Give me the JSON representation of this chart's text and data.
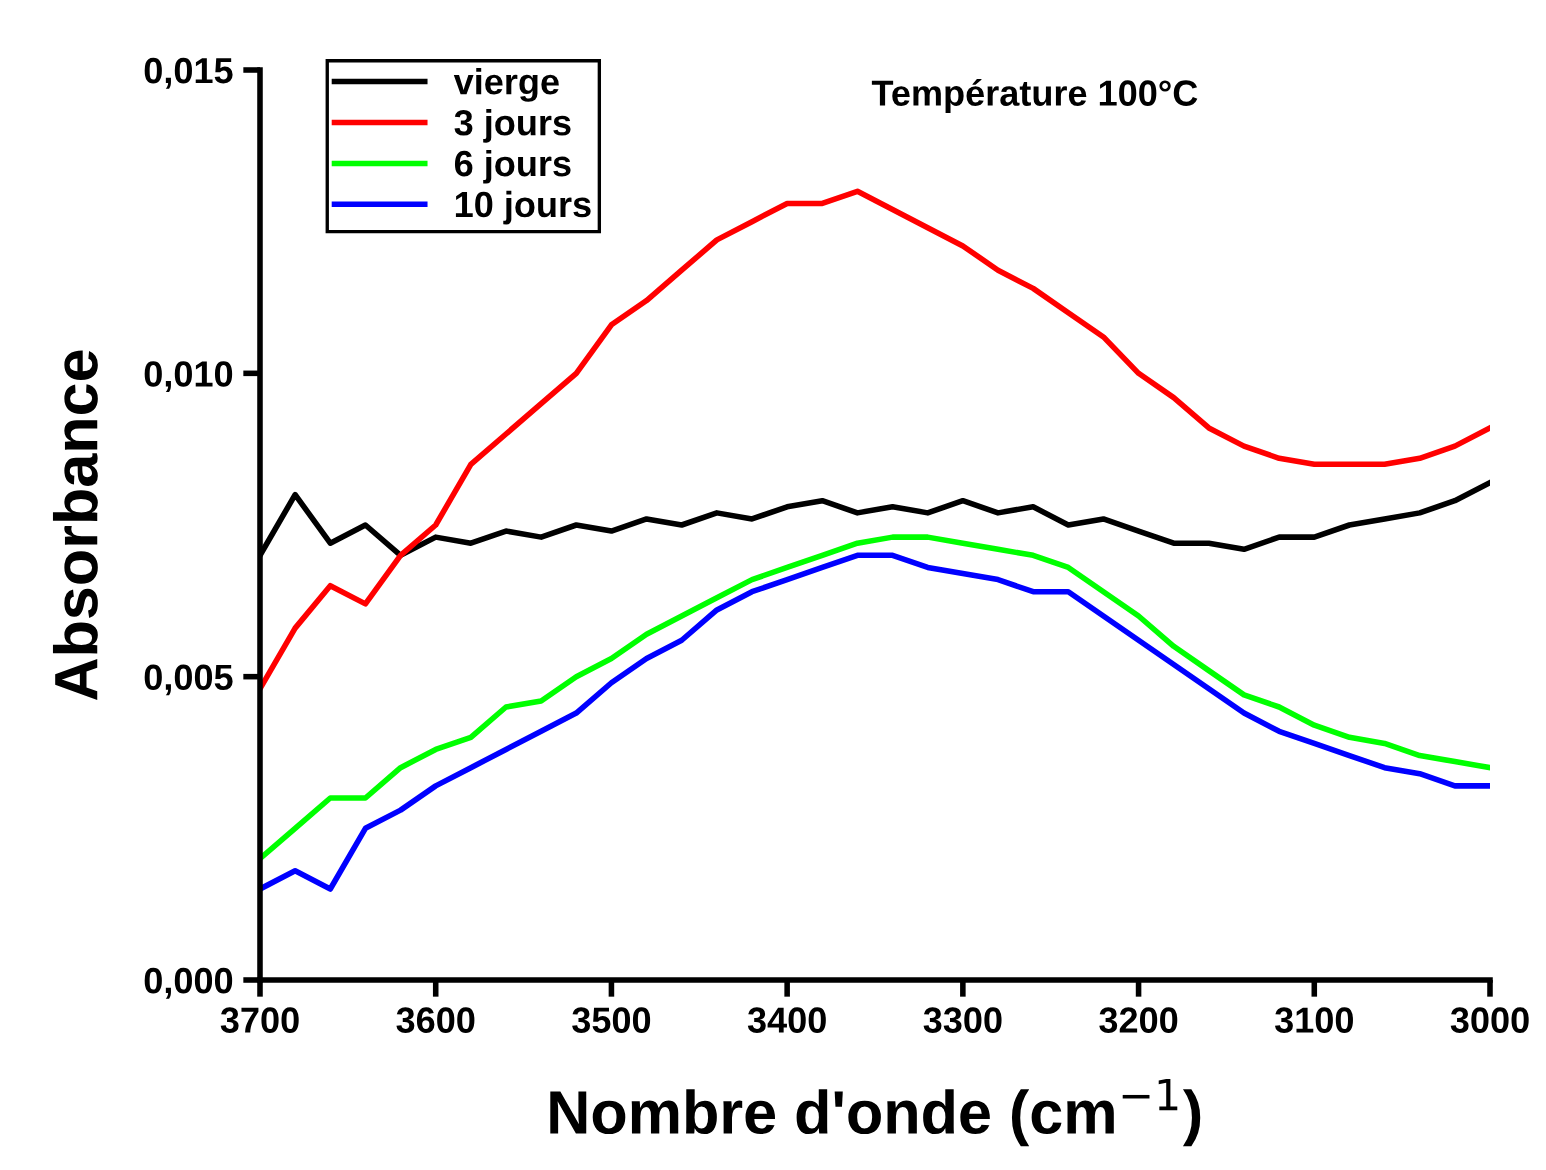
{
  "chart_data": {
    "type": "line",
    "title": "Température 100°C",
    "xlabel": "Nombre d'onde (cm$^{−1}$)",
    "ylabel": "Absorbance",
    "x": [
      3700,
      3680,
      3660,
      3640,
      3620,
      3600,
      3580,
      3560,
      3540,
      3520,
      3500,
      3480,
      3460,
      3440,
      3420,
      3400,
      3380,
      3360,
      3340,
      3320,
      3300,
      3280,
      3260,
      3240,
      3220,
      3200,
      3180,
      3160,
      3140,
      3120,
      3100,
      3080,
      3060,
      3040,
      3020,
      3000
    ],
    "series": [
      {
        "name": "vierge",
        "color": "#000000",
        "values": [
          0.007,
          0.008,
          0.0072,
          0.0075,
          0.007,
          0.0073,
          0.0072,
          0.0074,
          0.0073,
          0.0075,
          0.0074,
          0.0076,
          0.0075,
          0.0077,
          0.0076,
          0.0078,
          0.0079,
          0.0077,
          0.0078,
          0.0077,
          0.0079,
          0.0077,
          0.0078,
          0.0075,
          0.0076,
          0.0074,
          0.0072,
          0.0072,
          0.0071,
          0.0073,
          0.0073,
          0.0075,
          0.0076,
          0.0077,
          0.0079,
          0.0082
        ]
      },
      {
        "name": "3 jours",
        "color": "#ff0000",
        "values": [
          0.0048,
          0.0058,
          0.0065,
          0.0062,
          0.007,
          0.0075,
          0.0085,
          0.009,
          0.0095,
          0.01,
          0.0108,
          0.0112,
          0.0117,
          0.0122,
          0.0125,
          0.0128,
          0.0128,
          0.013,
          0.0127,
          0.0124,
          0.0121,
          0.0117,
          0.0114,
          0.011,
          0.0106,
          0.01,
          0.0096,
          0.0091,
          0.0088,
          0.0086,
          0.0085,
          0.0085,
          0.0085,
          0.0086,
          0.0088,
          0.0091
        ]
      },
      {
        "name": "6 jours",
        "color": "#00ff00",
        "values": [
          0.002,
          0.0025,
          0.003,
          0.003,
          0.0035,
          0.0038,
          0.004,
          0.0045,
          0.0046,
          0.005,
          0.0053,
          0.0057,
          0.006,
          0.0063,
          0.0066,
          0.0068,
          0.007,
          0.0072,
          0.0073,
          0.0073,
          0.0072,
          0.0071,
          0.007,
          0.0068,
          0.0064,
          0.006,
          0.0055,
          0.0051,
          0.0047,
          0.0045,
          0.0042,
          0.004,
          0.0039,
          0.0037,
          0.0036,
          0.0035
        ]
      },
      {
        "name": "10 jours",
        "color": "#0000ff",
        "values": [
          0.0015,
          0.0018,
          0.0015,
          0.0025,
          0.0028,
          0.0032,
          0.0035,
          0.0038,
          0.0041,
          0.0044,
          0.0049,
          0.0053,
          0.0056,
          0.0061,
          0.0064,
          0.0066,
          0.0068,
          0.007,
          0.007,
          0.0068,
          0.0067,
          0.0066,
          0.0064,
          0.0064,
          0.006,
          0.0056,
          0.0052,
          0.0048,
          0.0044,
          0.0041,
          0.0039,
          0.0037,
          0.0035,
          0.0034,
          0.0032,
          0.0032
        ]
      }
    ],
    "xlim": [
      3700,
      3000
    ],
    "xticks": [
      3700,
      3600,
      3500,
      3400,
      3300,
      3200,
      3100,
      3000
    ],
    "ylim": [
      0,
      0.015
    ],
    "yticks": [
      {
        "value": 0,
        "label": "0,000"
      },
      {
        "value": 0.005,
        "label": "0,005"
      },
      {
        "value": 0.01,
        "label": "0,010"
      },
      {
        "value": 0.015,
        "label": "0,015"
      }
    ],
    "legend": "top left",
    "grid": false
  }
}
